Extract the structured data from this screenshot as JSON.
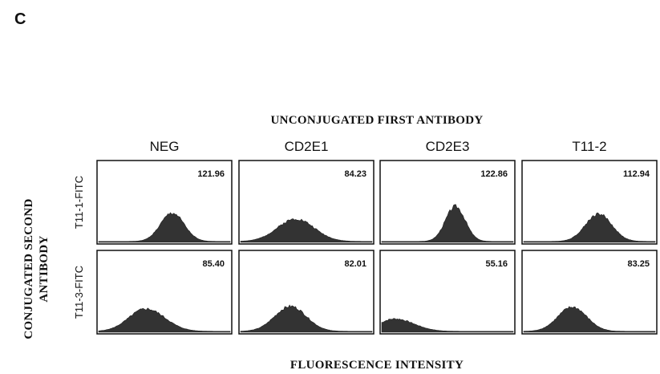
{
  "panel_letter": "C",
  "chart_data": {
    "type": "histogram-grid",
    "title": "UNCONJUGATED FIRST ANTIBODY",
    "xlabel": "FLUORESCENCE INTENSITY",
    "ylabel_lines": [
      "CONJUGATED SECOND",
      "ANTIBODY"
    ],
    "columns": [
      "NEG",
      "CD2E1",
      "CD2E3",
      "T11-2"
    ],
    "rows": [
      "T11-1-FITC",
      "T11-3-FITC"
    ],
    "values": [
      [
        "121.96",
        "84.23",
        "122.86",
        "112.94"
      ],
      [
        "85.40",
        "82.01",
        "55.16",
        "83.25"
      ]
    ],
    "colors": {
      "histogram_fill": "#333333",
      "frame": "#111111"
    }
  }
}
